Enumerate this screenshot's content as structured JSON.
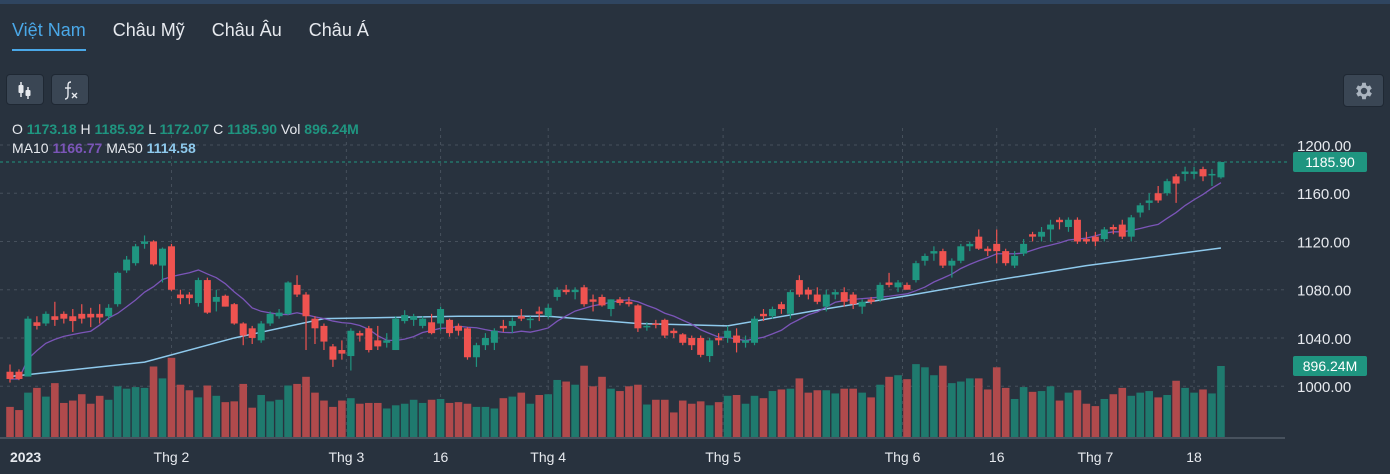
{
  "tabs": [
    {
      "label": "Việt Nam",
      "active": true
    },
    {
      "label": "Châu Mỹ"
    },
    {
      "label": "Châu Âu"
    },
    {
      "label": "Châu Á"
    }
  ],
  "toolbar": {
    "chart_type_icon": "candlestick-icon",
    "indicator_icon": "function-icon",
    "settings_icon": "gear-icon"
  },
  "legend": {
    "o_label": "O",
    "o": "1173.18",
    "h_label": "H",
    "h": "1185.92",
    "l_label": "L",
    "l": "1172.07",
    "c_label": "C",
    "c": "1185.90",
    "vol_label": "Vol",
    "vol": "896.24M",
    "ma10_label": "MA10",
    "ma10": "1166.77",
    "ma50_label": "MA50",
    "ma50": "1114.58"
  },
  "colors": {
    "up": "#1f9580",
    "down": "#ef5350",
    "vol_up": "#1f7a6e",
    "vol_down": "#b04a4c",
    "ma10": "#7b55b8",
    "ma50": "#8ec9ec",
    "accent": "#4aa8e8"
  },
  "price_tag": "1185.90",
  "volume_tag": "896.24M",
  "chart_data": {
    "type": "candlestick",
    "title": "",
    "ylim": [
      960,
      1215
    ],
    "y_ticks": [
      "1200.00",
      "1160.00",
      "1120.00",
      "1080.00",
      "1040.00",
      "1000.00"
    ],
    "y_tick_values": [
      1200,
      1160,
      1120,
      1080,
      1040,
      1000
    ],
    "x_labels": [
      {
        "label": "2023",
        "index": 2
      },
      {
        "label": "Thg 2",
        "index": 18
      },
      {
        "label": "Thg 3",
        "index": 37.5
      },
      {
        "label": "16",
        "index": 48
      },
      {
        "label": "Thg 4",
        "index": 60
      },
      {
        "label": "Thg 5",
        "index": 79.5
      },
      {
        "label": "Thg 6",
        "index": 99.5
      },
      {
        "label": "16",
        "index": 110
      },
      {
        "label": "Thg 7",
        "index": 121
      },
      {
        "label": "18",
        "index": 132
      }
    ],
    "last_close": 1185.9,
    "last_volume_m": 896.24,
    "candles_ohlcv_m": [
      [
        1012,
        1018,
        1003,
        1006,
        380
      ],
      [
        1012,
        1014,
        1005,
        1006,
        340
      ],
      [
        1008,
        1058,
        1008,
        1056,
        560
      ],
      [
        1053,
        1058,
        1047,
        1050,
        620
      ],
      [
        1052,
        1062,
        1050,
        1060,
        510
      ],
      [
        1058,
        1070,
        1050,
        1055,
        680
      ],
      [
        1060,
        1062,
        1052,
        1056,
        430
      ],
      [
        1058,
        1064,
        1045,
        1054,
        460
      ],
      [
        1060,
        1068,
        1052,
        1056,
        540
      ],
      [
        1060,
        1065,
        1049,
        1057,
        420
      ],
      [
        1060,
        1068,
        1052,
        1057,
        520
      ],
      [
        1058,
        1068,
        1055,
        1065,
        470
      ],
      [
        1068,
        1095,
        1066,
        1094,
        640
      ],
      [
        1096,
        1108,
        1094,
        1105,
        610
      ],
      [
        1102,
        1118,
        1100,
        1116,
        630
      ],
      [
        1118,
        1125,
        1114,
        1120,
        620
      ],
      [
        1120,
        1121,
        1100,
        1101,
        890
      ],
      [
        1100,
        1115,
        1086,
        1114,
        740
      ],
      [
        1116,
        1118,
        1079,
        1080,
        1000
      ],
      [
        1076,
        1080,
        1068,
        1073,
        660
      ],
      [
        1076,
        1078,
        1068,
        1073,
        590
      ],
      [
        1069,
        1090,
        1066,
        1088,
        500
      ],
      [
        1088,
        1090,
        1060,
        1061,
        650
      ],
      [
        1070,
        1080,
        1062,
        1074,
        520
      ],
      [
        1075,
        1076,
        1066,
        1066,
        440
      ],
      [
        1068,
        1069,
        1051,
        1052,
        450
      ],
      [
        1052,
        1053,
        1034,
        1042,
        670
      ],
      [
        1048,
        1050,
        1035,
        1040,
        370
      ],
      [
        1038,
        1054,
        1036,
        1052,
        530
      ],
      [
        1052,
        1062,
        1050,
        1060,
        450
      ],
      [
        1058,
        1064,
        1056,
        1061,
        470
      ],
      [
        1060,
        1087,
        1059,
        1086,
        650
      ],
      [
        1084,
        1092,
        1074,
        1076,
        670
      ],
      [
        1076,
        1078,
        1030,
        1058,
        760
      ],
      [
        1056,
        1058,
        1035,
        1048,
        560
      ],
      [
        1050,
        1052,
        1030,
        1037,
        460
      ],
      [
        1033,
        1035,
        1016,
        1022,
        380
      ],
      [
        1030,
        1038,
        1022,
        1027,
        460
      ],
      [
        1025,
        1048,
        1013,
        1046,
        490
      ],
      [
        1044,
        1046,
        1037,
        1042,
        420
      ],
      [
        1048,
        1050,
        1028,
        1030,
        430
      ],
      [
        1038,
        1050,
        1030,
        1033,
        430
      ],
      [
        1036,
        1044,
        1032,
        1038,
        360
      ],
      [
        1030,
        1058,
        1030,
        1056,
        400
      ],
      [
        1054,
        1063,
        1052,
        1059,
        420
      ],
      [
        1055,
        1060,
        1050,
        1058,
        470
      ],
      [
        1050,
        1058,
        1048,
        1056,
        430
      ],
      [
        1053,
        1060,
        1043,
        1044,
        470
      ],
      [
        1052,
        1066,
        1046,
        1064,
        480
      ],
      [
        1055,
        1056,
        1041,
        1044,
        430
      ],
      [
        1050,
        1052,
        1042,
        1046,
        440
      ],
      [
        1048,
        1049,
        1022,
        1024,
        420
      ],
      [
        1024,
        1036,
        1016,
        1034,
        380
      ],
      [
        1034,
        1044,
        1030,
        1040,
        380
      ],
      [
        1036,
        1048,
        1030,
        1046,
        360
      ],
      [
        1050,
        1055,
        1045,
        1048,
        490
      ],
      [
        1050,
        1057,
        1044,
        1054,
        510
      ],
      [
        1058,
        1064,
        1054,
        1056,
        560
      ],
      [
        1055,
        1058,
        1048,
        1056,
        420
      ],
      [
        1062,
        1066,
        1054,
        1060,
        530
      ],
      [
        1058,
        1068,
        1056,
        1065,
        540
      ],
      [
        1074,
        1082,
        1071,
        1080,
        720
      ],
      [
        1080,
        1084,
        1076,
        1078,
        700
      ],
      [
        1078,
        1082,
        1072,
        1080,
        660
      ],
      [
        1082,
        1084,
        1066,
        1068,
        900
      ],
      [
        1072,
        1076,
        1062,
        1070,
        640
      ],
      [
        1074,
        1076,
        1066,
        1067,
        760
      ],
      [
        1064,
        1072,
        1058,
        1072,
        610
      ],
      [
        1072,
        1074,
        1067,
        1069,
        580
      ],
      [
        1070,
        1074,
        1066,
        1068,
        640
      ],
      [
        1067,
        1068,
        1045,
        1048,
        660
      ],
      [
        1050,
        1053,
        1046,
        1050,
        410
      ],
      [
        1052,
        1055,
        1048,
        1051,
        470
      ],
      [
        1055,
        1056,
        1040,
        1042,
        470
      ],
      [
        1046,
        1048,
        1040,
        1044,
        310
      ],
      [
        1043,
        1044,
        1034,
        1036,
        460
      ],
      [
        1040,
        1042,
        1030,
        1034,
        420
      ],
      [
        1040,
        1042,
        1024,
        1026,
        450
      ],
      [
        1025,
        1040,
        1020,
        1038,
        400
      ],
      [
        1040,
        1044,
        1034,
        1038,
        440
      ],
      [
        1040,
        1050,
        1036,
        1046,
        520
      ],
      [
        1042,
        1048,
        1028,
        1036,
        530
      ],
      [
        1036,
        1042,
        1032,
        1038,
        420
      ],
      [
        1036,
        1058,
        1034,
        1056,
        520
      ],
      [
        1060,
        1064,
        1054,
        1058,
        490
      ],
      [
        1058,
        1066,
        1056,
        1064,
        580
      ],
      [
        1068,
        1070,
        1060,
        1064,
        600
      ],
      [
        1060,
        1080,
        1056,
        1078,
        610
      ],
      [
        1088,
        1092,
        1074,
        1076,
        740
      ],
      [
        1080,
        1082,
        1072,
        1076,
        560
      ],
      [
        1076,
        1082,
        1068,
        1070,
        590
      ],
      [
        1066,
        1080,
        1062,
        1076,
        590
      ],
      [
        1076,
        1080,
        1072,
        1078,
        550
      ],
      [
        1078,
        1082,
        1066,
        1070,
        610
      ],
      [
        1076,
        1078,
        1064,
        1068,
        610
      ],
      [
        1066,
        1072,
        1060,
        1070,
        560
      ],
      [
        1072,
        1074,
        1068,
        1070,
        500
      ],
      [
        1072,
        1086,
        1070,
        1084,
        660
      ],
      [
        1086,
        1094,
        1082,
        1084,
        760
      ],
      [
        1082,
        1088,
        1078,
        1086,
        780
      ],
      [
        1084,
        1086,
        1080,
        1080,
        730
      ],
      [
        1088,
        1104,
        1086,
        1102,
        920
      ],
      [
        1104,
        1110,
        1100,
        1108,
        880
      ],
      [
        1110,
        1116,
        1104,
        1112,
        780
      ],
      [
        1112,
        1114,
        1098,
        1100,
        900
      ],
      [
        1100,
        1106,
        1090,
        1104,
        680
      ],
      [
        1104,
        1118,
        1102,
        1116,
        700
      ],
      [
        1116,
        1120,
        1112,
        1118,
        740
      ],
      [
        1124,
        1130,
        1113,
        1114,
        740
      ],
      [
        1114,
        1116,
        1108,
        1112,
        600
      ],
      [
        1118,
        1130,
        1102,
        1112,
        880
      ],
      [
        1112,
        1114,
        1100,
        1102,
        620
      ],
      [
        1100,
        1112,
        1098,
        1108,
        480
      ],
      [
        1110,
        1122,
        1108,
        1118,
        630
      ],
      [
        1126,
        1128,
        1120,
        1124,
        570
      ],
      [
        1124,
        1132,
        1120,
        1128,
        580
      ],
      [
        1130,
        1138,
        1120,
        1134,
        640
      ],
      [
        1138,
        1140,
        1130,
        1136,
        460
      ],
      [
        1132,
        1140,
        1128,
        1138,
        560
      ],
      [
        1138,
        1140,
        1118,
        1120,
        590
      ],
      [
        1122,
        1128,
        1118,
        1120,
        420
      ],
      [
        1124,
        1128,
        1116,
        1120,
        390
      ],
      [
        1122,
        1132,
        1120,
        1130,
        480
      ],
      [
        1132,
        1134,
        1126,
        1130,
        540
      ],
      [
        1134,
        1138,
        1122,
        1124,
        620
      ],
      [
        1124,
        1142,
        1120,
        1140,
        520
      ],
      [
        1144,
        1152,
        1140,
        1150,
        560
      ],
      [
        1152,
        1160,
        1146,
        1154,
        580
      ],
      [
        1160,
        1166,
        1152,
        1154,
        500
      ],
      [
        1160,
        1172,
        1158,
        1170,
        530
      ],
      [
        1174,
        1176,
        1152,
        1168,
        710
      ],
      [
        1176,
        1182,
        1170,
        1178,
        620
      ],
      [
        1176,
        1182,
        1172,
        1178,
        560
      ],
      [
        1180,
        1182,
        1170,
        1174,
        600
      ],
      [
        1175,
        1180,
        1166,
        1176,
        550
      ],
      [
        1173.18,
        1185.92,
        1172.07,
        1185.9,
        896.24
      ]
    ],
    "ma50_points": [
      [
        0,
        1008
      ],
      [
        15,
        1020
      ],
      [
        25,
        1040
      ],
      [
        35,
        1056
      ],
      [
        50,
        1058
      ],
      [
        60,
        1058
      ],
      [
        70,
        1052
      ],
      [
        80,
        1050
      ],
      [
        90,
        1063
      ],
      [
        100,
        1075
      ],
      [
        110,
        1088
      ],
      [
        120,
        1100
      ],
      [
        135,
        1114.58
      ]
    ],
    "ma10_last": 1166.77
  }
}
